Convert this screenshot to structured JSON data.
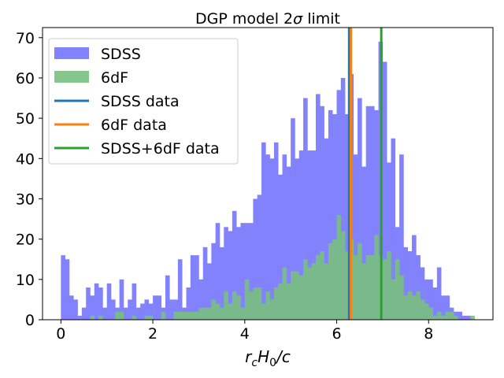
{
  "chart_data": {
    "type": "histogram",
    "title": "DGP model 2σ limit",
    "title_parts": {
      "prefix": "DGP model 2",
      "sigma": "σ",
      "suffix": " limit"
    },
    "xlabel": "r_c H_0/c",
    "xlabel_parts": {
      "r": "r",
      "r_sub": "c",
      "H": "H",
      "H_sub": "0",
      "tail": "/c"
    },
    "ylabel": "",
    "xlim": [
      -0.4,
      9.4
    ],
    "ylim": [
      0,
      72.5
    ],
    "x_ticks": [
      0,
      2,
      4,
      6,
      8
    ],
    "x_tick_labels": [
      "0",
      "2",
      "4",
      "6",
      "8"
    ],
    "y_ticks": [
      0,
      10,
      20,
      30,
      40,
      50,
      60,
      70
    ],
    "y_tick_labels": [
      "0",
      "10",
      "20",
      "30",
      "40",
      "50",
      "60",
      "70"
    ],
    "bin_start": 0.0,
    "bin_width": 0.0909,
    "series": [
      {
        "name": "SDSS",
        "kind": "hist",
        "color": "#7f7ffd",
        "values": [
          16,
          15,
          6,
          5,
          1,
          3,
          8,
          6,
          9,
          8,
          3,
          9,
          5,
          3,
          10,
          3,
          5,
          9,
          3,
          4,
          5,
          4,
          6,
          6,
          3,
          11,
          5,
          5,
          15,
          3,
          8,
          16,
          16,
          10,
          18,
          14,
          19,
          24,
          18,
          23,
          22,
          27,
          23,
          24,
          24,
          24,
          30,
          31,
          44,
          41,
          40,
          44,
          36,
          41,
          38,
          50,
          40,
          42,
          55,
          42,
          42,
          56,
          53,
          45,
          52,
          51,
          57,
          60,
          51,
          61,
          41,
          55,
          38,
          53,
          53,
          52,
          69,
          64,
          39,
          45,
          23,
          41,
          18,
          17,
          21,
          16,
          13,
          10,
          10,
          8,
          13,
          6,
          6,
          3,
          2,
          2,
          1,
          1,
          0
        ]
      },
      {
        "name": "6dF",
        "kind": "hist",
        "color": "#79bf7f",
        "values": [
          0,
          0,
          0,
          0,
          0,
          0,
          0,
          1,
          0,
          1,
          0,
          0,
          0,
          2,
          2,
          0,
          0,
          1,
          0,
          0,
          1,
          1,
          0,
          0,
          2,
          0,
          0,
          2,
          2,
          2,
          2,
          2,
          2,
          3,
          3,
          3,
          5,
          4,
          3,
          7,
          4,
          7,
          6,
          3,
          10,
          7,
          8,
          8,
          4,
          7,
          5,
          8,
          9,
          13,
          9,
          12,
          12,
          11,
          15,
          13,
          14,
          16,
          17,
          14,
          19,
          20,
          26,
          22,
          17,
          20,
          16,
          19,
          14,
          16,
          16,
          21,
          16,
          15,
          17,
          10,
          15,
          11,
          6,
          7,
          6,
          7,
          5,
          4,
          3,
          1,
          2,
          1,
          2,
          2,
          1,
          0,
          0,
          0,
          1
        ]
      },
      {
        "name": "SDSS data",
        "kind": "vline",
        "color": "#1f77b4",
        "x": 6.27
      },
      {
        "name": "6dF data",
        "kind": "vline",
        "color": "#ff7f0e",
        "x": 6.31
      },
      {
        "name": "SDSS+6dF data",
        "kind": "vline",
        "color": "#2ca02c",
        "x": 6.97
      }
    ],
    "legend": {
      "position": "top-left",
      "entries": [
        "SDSS",
        "6dF",
        "SDSS data",
        "6dF data",
        "SDSS+6dF data"
      ]
    }
  }
}
